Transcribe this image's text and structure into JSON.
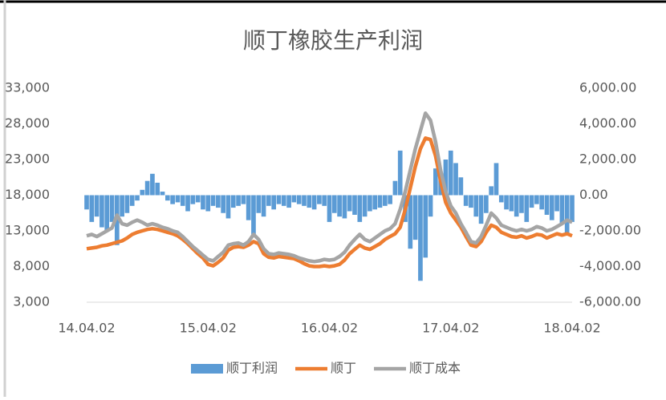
{
  "chart_data": {
    "type": "combo",
    "title": "顺丁橡胶生产利润",
    "categories": [
      "14.04.02",
      null,
      null,
      null,
      null,
      null,
      null,
      null,
      null,
      null,
      null,
      null,
      null,
      null,
      null,
      null,
      null,
      null,
      null,
      null,
      null,
      null,
      null,
      null,
      "15.04.02",
      null,
      null,
      null,
      null,
      null,
      null,
      null,
      null,
      null,
      null,
      null,
      null,
      null,
      null,
      null,
      null,
      null,
      null,
      null,
      null,
      null,
      null,
      null,
      "16.04.02",
      null,
      null,
      null,
      null,
      null,
      null,
      null,
      null,
      null,
      null,
      null,
      null,
      null,
      null,
      null,
      null,
      null,
      null,
      null,
      null,
      null,
      null,
      null,
      "17.04.02",
      null,
      null,
      null,
      null,
      null,
      null,
      null,
      null,
      null,
      null,
      null,
      null,
      null,
      null,
      null,
      null,
      null,
      null,
      null,
      null,
      null,
      null,
      null,
      "18.04.02"
    ],
    "series": [
      {
        "name": "顺丁利润",
        "type": "bar",
        "axis": "y2",
        "color": "#5b9bd5",
        "values": [
          -800,
          -1500,
          -1200,
          -1800,
          -2000,
          -1500,
          -2800,
          -1200,
          -1000,
          -600,
          -300,
          300,
          800,
          1200,
          700,
          200,
          -300,
          -500,
          -400,
          -600,
          -900,
          -500,
          -400,
          -800,
          -900,
          -600,
          -700,
          -1000,
          -1300,
          -700,
          -600,
          -500,
          -1400,
          -2200,
          -1000,
          -1200,
          -600,
          -800,
          -500,
          -600,
          -700,
          -400,
          -500,
          -600,
          -700,
          -800,
          -500,
          -600,
          -1500,
          -1000,
          -1200,
          -1300,
          -900,
          -1100,
          -1500,
          -1200,
          -900,
          -800,
          -700,
          -600,
          -500,
          800,
          2500,
          -1500,
          -3000,
          -2500,
          -4800,
          -3500,
          -1200,
          1500,
          1200,
          2000,
          2500,
          1800,
          1000,
          -600,
          -700,
          -1200,
          -1600,
          -1000,
          500,
          1800,
          -400,
          -800,
          -900,
          -1200,
          -1000,
          -1500,
          -700,
          -500,
          -800,
          -1100,
          -1400,
          -900,
          -1600,
          -2200,
          -1500
        ]
      },
      {
        "name": "顺丁",
        "type": "line",
        "color": "#ed7d31",
        "values": [
          10500,
          10600,
          10700,
          10900,
          11000,
          11200,
          11400,
          11600,
          12000,
          12500,
          12800,
          13000,
          13200,
          13300,
          13200,
          13000,
          12800,
          12600,
          12300,
          11800,
          11200,
          10500,
          9800,
          9200,
          8300,
          8100,
          8600,
          9200,
          10300,
          10700,
          10800,
          10700,
          11000,
          11500,
          11200,
          9800,
          9300,
          9200,
          9400,
          9300,
          9200,
          9100,
          8800,
          8400,
          8100,
          8000,
          8000,
          8100,
          8000,
          8100,
          8300,
          8900,
          9800,
          10400,
          11000,
          10600,
          10400,
          10800,
          11200,
          11800,
          12200,
          12600,
          13500,
          16000,
          19000,
          22000,
          24500,
          26000,
          25800,
          23500,
          20000,
          17000,
          15500,
          14500,
          13500,
          12200,
          11000,
          10800,
          11500,
          12800,
          13800,
          13500,
          12800,
          12500,
          12200,
          12100,
          12300,
          12000,
          12200,
          12500,
          12400,
          12000,
          12300,
          12600,
          12400,
          12600,
          12300
        ]
      },
      {
        "name": "顺丁成本",
        "type": "line",
        "color": "#a5a5a5",
        "values": [
          12300,
          12500,
          12200,
          12600,
          13000,
          13400,
          15200,
          14000,
          13800,
          14200,
          14500,
          14200,
          13800,
          14000,
          13800,
          13500,
          13300,
          13000,
          12800,
          12200,
          11500,
          10800,
          10200,
          9600,
          9000,
          8800,
          9400,
          10000,
          11000,
          11200,
          11300,
          11000,
          11500,
          12500,
          11800,
          10500,
          9800,
          9700,
          9900,
          9800,
          9700,
          9500,
          9200,
          9000,
          8800,
          8700,
          8800,
          9000,
          8900,
          9000,
          9400,
          10000,
          11000,
          11800,
          12500,
          11800,
          11500,
          12000,
          12500,
          13000,
          13300,
          14000,
          16000,
          18500,
          21500,
          24500,
          27000,
          29500,
          28500,
          25500,
          21500,
          18500,
          16500,
          15500,
          14000,
          12800,
          11500,
          11300,
          12200,
          13800,
          15500,
          14800,
          13800,
          13500,
          13200,
          13000,
          13200,
          13000,
          13200,
          13600,
          13400,
          13000,
          13200,
          13600,
          14000,
          14500,
          14200
        ]
      }
    ],
    "ylim": [
      3000,
      33000
    ],
    "yticks": [
      {
        "value": 3000,
        "label": "3,000"
      },
      {
        "value": 8000,
        "label": "8,000"
      },
      {
        "value": 13000,
        "label": "13,000"
      },
      {
        "value": 18000,
        "label": "18,000"
      },
      {
        "value": 23000,
        "label": "23,000"
      },
      {
        "value": 28000,
        "label": "28,000"
      },
      {
        "value": 33000,
        "label": "33,000"
      }
    ],
    "y2lim": [
      -6000,
      6000
    ],
    "y2ticks": [
      {
        "value": -6000,
        "label": "-6,000.00"
      },
      {
        "value": -4000,
        "label": "-4,000.00"
      },
      {
        "value": -2000,
        "label": "-2,000.00"
      },
      {
        "value": 0,
        "label": "0.00"
      },
      {
        "value": 2000,
        "label": "2,000.00"
      },
      {
        "value": 4000,
        "label": "4,000.00"
      },
      {
        "value": 6000,
        "label": "6,000.00"
      }
    ],
    "legend": "bottom",
    "grid": false
  }
}
